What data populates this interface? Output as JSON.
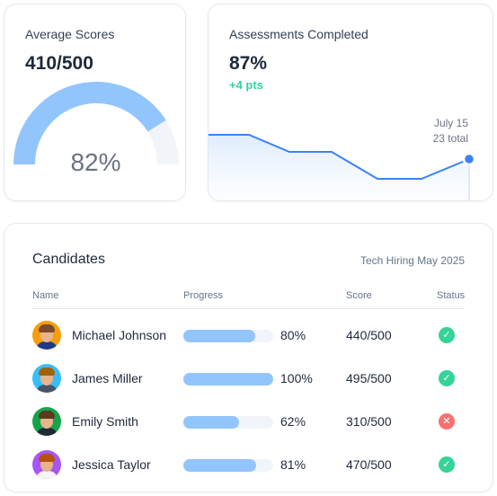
{
  "average_scores": {
    "title": "Average Scores",
    "value": "410/500",
    "gauge_percent_label": "82%",
    "gauge_fraction": 0.82,
    "colors": {
      "fill": "#93c5fd",
      "track": "#f1f5f9",
      "label": "#6b7280"
    }
  },
  "assessments": {
    "title": "Assessments Completed",
    "value": "87%",
    "delta": "+4 pts",
    "marker_date": "July 15",
    "marker_total": "23 total",
    "colors": {
      "line": "#3b82f6",
      "delta": "#34d399"
    }
  },
  "candidates": {
    "title": "Candidates",
    "subtitle": "Tech Hiring May 2025",
    "columns": {
      "name": "Name",
      "progress": "Progress",
      "score": "Score",
      "status": "Status"
    },
    "rows": [
      {
        "name": "Michael Johnson",
        "progress_label": "80%",
        "progress": 0.8,
        "score": "440/500",
        "status": "passed",
        "status_icon": "check-icon",
        "avatar_bg": "#f59e0b",
        "hair": "#7c4a2d",
        "shirt": "#1e3a8a"
      },
      {
        "name": "James Miller",
        "progress_label": "100%",
        "progress": 1.0,
        "score": "495/500",
        "status": "passed",
        "status_icon": "check-icon",
        "avatar_bg": "#38bdf8",
        "hair": "#a16207",
        "shirt": "#475569"
      },
      {
        "name": "Emily Smith",
        "progress_label": "62%",
        "progress": 0.62,
        "score": "310/500",
        "status": "failed",
        "status_icon": "x-icon",
        "avatar_bg": "#16a34a",
        "hair": "#5b3a1e",
        "shirt": "#1f2937"
      },
      {
        "name": "Jessica Taylor",
        "progress_label": "81%",
        "progress": 0.81,
        "score": "470/500",
        "status": "passed",
        "status_icon": "check-icon",
        "avatar_bg": "#a855f7",
        "hair": "#b45309",
        "shirt": "#f5f5f4"
      }
    ],
    "colors": {
      "bar_fill": "#93c5fd",
      "bar_track": "#f1f5f9",
      "pass": "#34d399",
      "fail": "#f87171"
    }
  }
}
